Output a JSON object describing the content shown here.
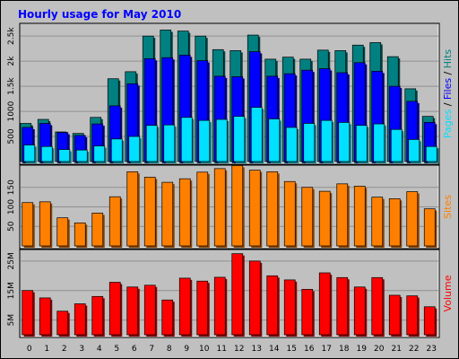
{
  "chart_data": {
    "type": "bar",
    "title": "Hourly usage for May 2010",
    "categories": [
      "0",
      "1",
      "2",
      "3",
      "4",
      "5",
      "6",
      "7",
      "8",
      "9",
      "10",
      "11",
      "12",
      "13",
      "14",
      "15",
      "16",
      "17",
      "18",
      "19",
      "20",
      "21",
      "22",
      "23"
    ],
    "panels": [
      {
        "id": "hits",
        "ylim": [
          0,
          2700
        ],
        "yticks": [
          500,
          1000,
          1500,
          2000,
          2500
        ],
        "ytick_labels": [
          "500",
          "1000",
          "1.5k",
          "2k",
          "2.5k"
        ],
        "label_parts": [
          {
            "text": "Pages",
            "color": "#00e0ff"
          },
          {
            "text": " / ",
            "color": "#000000"
          },
          {
            "text": "Files",
            "color": "#0000ff"
          },
          {
            "text": " / ",
            "color": "#000000"
          },
          {
            "text": "Hits",
            "color": "#008080"
          }
        ],
        "series": [
          {
            "name": "Hits",
            "color": "#008080",
            "values": [
              760,
              840,
              590,
              560,
              880,
              1650,
              1790,
              2500,
              2620,
              2600,
              2500,
              2230,
              2210,
              2520,
              2040,
              2080,
              2040,
              2220,
              2210,
              2320,
              2370,
              2090,
              1450,
              900
            ]
          },
          {
            "name": "Files",
            "color": "#0000ff",
            "values": [
              680,
              760,
              580,
              520,
              750,
              1110,
              1550,
              2050,
              2070,
              2120,
              2010,
              1700,
              1690,
              2190,
              1700,
              1750,
              1820,
              1850,
              1770,
              1970,
              1800,
              1500,
              1200,
              780
            ]
          },
          {
            "name": "Pages",
            "color": "#00e0ff",
            "values": [
              330,
              300,
              240,
              230,
              310,
              450,
              500,
              720,
              730,
              880,
              820,
              840,
              900,
              1080,
              850,
              680,
              760,
              820,
              780,
              720,
              750,
              640,
              440,
              300
            ]
          }
        ]
      },
      {
        "id": "sites",
        "ylim": [
          0,
          200
        ],
        "yticks": [
          50,
          100,
          150
        ],
        "ytick_labels": [
          "50",
          "100",
          "150"
        ],
        "label_parts": [
          {
            "text": "Sites",
            "color": "#ff8000"
          }
        ],
        "series": [
          {
            "name": "Sites",
            "color": "#ff8000",
            "values": [
              111,
              113,
              72,
              59,
              84,
              126,
              190,
              176,
              163,
              172,
              189,
              198,
              206,
              194,
              190,
              165,
              150,
              140,
              159,
              153,
              125,
              121,
              139,
              95
            ]
          }
        ]
      },
      {
        "id": "volume",
        "ylim": [
          0,
          28
        ],
        "yticks": [
          5,
          15,
          25
        ],
        "ytick_labels": [
          "5M",
          "15M",
          "25M"
        ],
        "label_parts": [
          {
            "text": "Volume",
            "color": "#ff0000"
          }
        ],
        "series": [
          {
            "name": "Volume",
            "color": "#ff0000",
            "values": [
              15,
              12.5,
              8,
              10.5,
              13,
              17.8,
              16.2,
              16.8,
              11.8,
              19.2,
              18.2,
              19.5,
              27.5,
              25,
              20,
              18.6,
              15.4,
              21,
              19.4,
              16.2,
              19.4,
              13.4,
              13.2,
              9.5
            ]
          }
        ]
      }
    ]
  }
}
